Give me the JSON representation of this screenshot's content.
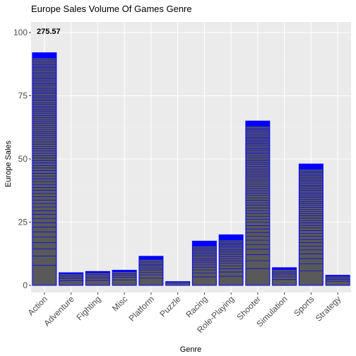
{
  "chart_data": {
    "type": "bar",
    "title": "Europe  Sales Volume Of Games Genre",
    "xlabel": "Genre",
    "ylabel": "Europe Sales",
    "categories": [
      "Action",
      "Adventure",
      "Fighting",
      "Misc",
      "Platform",
      "Puzzle",
      "Racing",
      "Role-Playing",
      "Shooter",
      "Simulation",
      "Sports",
      "Strategy"
    ],
    "values": [
      92,
      5,
      5.5,
      6,
      11.5,
      1.5,
      17.5,
      20,
      65,
      7,
      48,
      4
    ],
    "ylim": [
      0,
      105
    ],
    "yticks": [
      0,
      25,
      50,
      75,
      100
    ],
    "annotation": "275.57",
    "grid": true,
    "colors": {
      "fill": "#595959",
      "stripe": "#0000ff",
      "panel": "#ebebeb",
      "grid_major": "#ffffff",
      "grid_minor": "#f2f2f2"
    }
  }
}
